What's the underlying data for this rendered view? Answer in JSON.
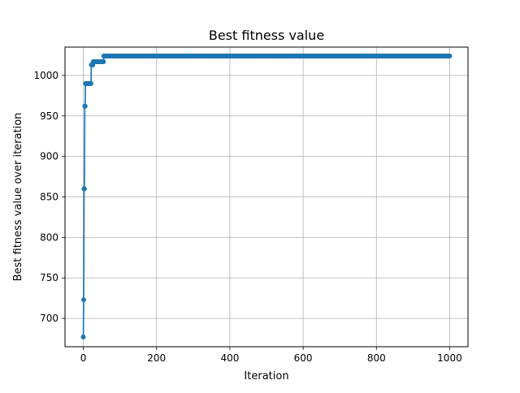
{
  "chart_data": {
    "type": "line",
    "title": "Best fitness value",
    "xlabel": "Iteration",
    "ylabel": "Best fitness value over iteration",
    "xlim": [
      -50,
      1050
    ],
    "ylim": [
      665,
      1035
    ],
    "x_ticks": [
      0,
      200,
      400,
      600,
      800,
      1000
    ],
    "y_ticks": [
      700,
      750,
      800,
      850,
      900,
      950,
      1000
    ],
    "grid": true,
    "marker": "circle",
    "line_color": "#1f77b4",
    "series": [
      {
        "segments": [
          {
            "x_start": 0,
            "x_end": 0,
            "y": 677
          },
          {
            "x_start": 1,
            "x_end": 1,
            "y": 723
          },
          {
            "x_start": 2,
            "x_end": 3,
            "y": 860
          },
          {
            "x_start": 4,
            "x_end": 5,
            "y": 962
          },
          {
            "x_start": 6,
            "x_end": 21,
            "y": 990
          },
          {
            "x_start": 22,
            "x_end": 26,
            "y": 1013
          },
          {
            "x_start": 27,
            "x_end": 55,
            "y": 1017
          },
          {
            "x_start": 56,
            "x_end": 1000,
            "y": 1024
          }
        ]
      }
    ]
  }
}
